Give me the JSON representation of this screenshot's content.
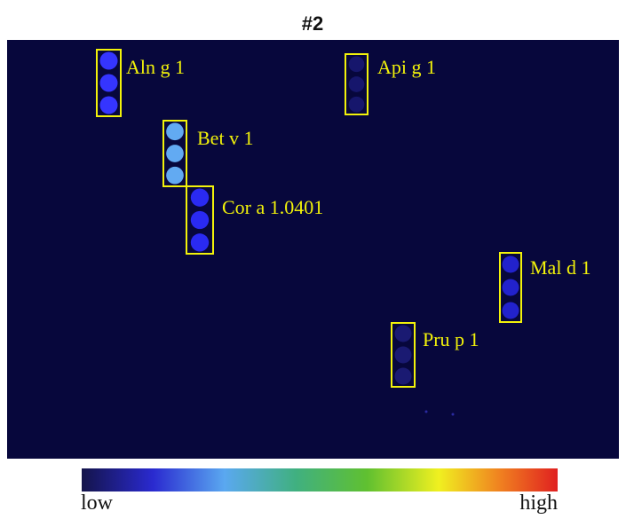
{
  "title": "#2",
  "spots": [
    {
      "label": "Aln g 1"
    },
    {
      "label": "Api g 1"
    },
    {
      "label": "Bet v 1"
    },
    {
      "label": "Cor a 1.0401"
    },
    {
      "label": "Mal d 1"
    },
    {
      "label": "Pru p 1"
    }
  ],
  "colorbar": {
    "low": "low",
    "high": "high"
  }
}
